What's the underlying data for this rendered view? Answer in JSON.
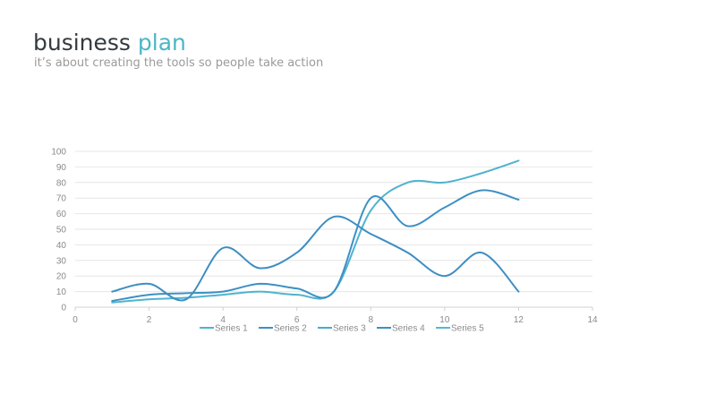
{
  "header": {
    "title_main": "business",
    "title_accent": "plan",
    "subtitle": "it’s about creating the tools so people take action"
  },
  "colors": {
    "accent": "#4bb5c9",
    "series": [
      "#4fb3cf",
      "#3c91c4",
      "#45adc9",
      "#3d8ec2",
      "#52b8d4"
    ],
    "grid": "#e6e6e6",
    "axis": "#d0d0d0"
  },
  "chart_data": {
    "type": "line",
    "smooth": true,
    "xlim": [
      0,
      14
    ],
    "ylim": [
      0,
      100
    ],
    "x_ticks": [
      0,
      2,
      4,
      6,
      8,
      10,
      12,
      14
    ],
    "y_ticks": [
      0,
      10,
      20,
      30,
      40,
      50,
      60,
      70,
      80,
      90,
      100
    ],
    "grid": "horizontal",
    "legend_position": "bottom",
    "series": [
      {
        "name": "Series 1",
        "points": [
          [
            1,
            3
          ],
          [
            2,
            5
          ],
          [
            3,
            6
          ],
          [
            4,
            8
          ],
          [
            5,
            10
          ],
          [
            6,
            8
          ],
          [
            7,
            10
          ],
          [
            8,
            62
          ],
          [
            9,
            80
          ],
          [
            10,
            80
          ],
          [
            11,
            86
          ],
          [
            12,
            94
          ]
        ]
      },
      {
        "name": "Series 2",
        "points": [
          [
            1,
            4
          ],
          [
            2,
            8
          ],
          [
            3,
            9
          ],
          [
            4,
            10
          ],
          [
            5,
            15
          ],
          [
            6,
            12
          ],
          [
            7,
            10
          ],
          [
            8,
            70
          ],
          [
            9,
            52
          ],
          [
            10,
            64
          ],
          [
            11,
            75
          ],
          [
            12,
            69
          ]
        ]
      },
      {
        "name": "Series 3",
        "points": []
      },
      {
        "name": "Series 4",
        "points": [
          [
            1,
            10
          ],
          [
            2,
            15
          ],
          [
            3,
            5
          ],
          [
            4,
            38
          ],
          [
            5,
            25
          ],
          [
            6,
            35
          ],
          [
            7,
            58
          ],
          [
            8,
            47
          ],
          [
            9,
            35
          ],
          [
            10,
            20
          ],
          [
            11,
            35
          ],
          [
            12,
            10
          ]
        ]
      },
      {
        "name": "Series 5",
        "points": []
      }
    ]
  }
}
